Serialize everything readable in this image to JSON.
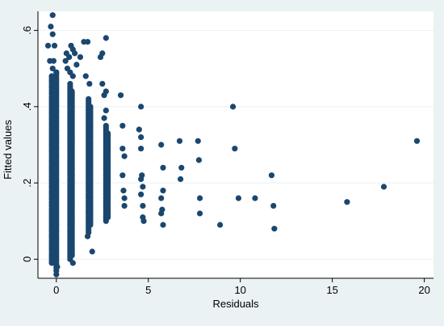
{
  "chart_data": {
    "type": "scatter",
    "title": "",
    "xlabel": "Residuals",
    "ylabel": "Fitted values",
    "xlim": [
      -1,
      20.5
    ],
    "ylim": [
      -0.05,
      0.65
    ],
    "xticks": [
      0,
      5,
      10,
      15,
      20
    ],
    "yticks": [
      0,
      0.2,
      0.4,
      0.6
    ],
    "xtick_labels": [
      "0",
      "5",
      "10",
      "15",
      "20"
    ],
    "ytick_labels": [
      "0",
      ".2",
      ".4",
      ".6"
    ],
    "grid": "horizontal",
    "legend": "none",
    "colors": {
      "outer_background": "#eaf2f3",
      "plot_background": "#ffffff",
      "marker": "#1a476f",
      "grid": "#eaf2f3"
    },
    "bands": [
      {
        "x": -0.25,
        "y_min": -0.01,
        "y_max": 0.48
      },
      {
        "x": 0.0,
        "y_min": -0.03,
        "y_max": 0.49
      },
      {
        "x": 0.75,
        "y_min": 0.0,
        "y_max": 0.46
      },
      {
        "x": 0.85,
        "y_min": 0.01,
        "y_max": 0.44
      },
      {
        "x": 1.75,
        "y_min": 0.07,
        "y_max": 0.42
      },
      {
        "x": 1.85,
        "y_min": 0.09,
        "y_max": 0.4
      },
      {
        "x": 2.7,
        "y_min": 0.1,
        "y_max": 0.35
      },
      {
        "x": 2.8,
        "y_min": 0.11,
        "y_max": 0.33
      }
    ],
    "points": [
      [
        -0.45,
        0.56
      ],
      [
        -0.35,
        0.52
      ],
      [
        -0.2,
        0.5
      ],
      [
        -0.15,
        0.52
      ],
      [
        -0.1,
        0.56
      ],
      [
        -0.2,
        0.59
      ],
      [
        -0.3,
        0.61
      ],
      [
        -0.2,
        0.64
      ],
      [
        0.0,
        0.49
      ],
      [
        0.5,
        0.52
      ],
      [
        0.55,
        0.54
      ],
      [
        0.7,
        0.53
      ],
      [
        0.8,
        0.56
      ],
      [
        0.9,
        0.55
      ],
      [
        1.0,
        0.54
      ],
      [
        0.6,
        0.5
      ],
      [
        0.75,
        0.49
      ],
      [
        0.9,
        0.48
      ],
      [
        1.1,
        0.51
      ],
      [
        1.3,
        0.53
      ],
      [
        1.5,
        0.57
      ],
      [
        1.7,
        0.57
      ],
      [
        1.6,
        0.48
      ],
      [
        1.8,
        0.46
      ],
      [
        1.7,
        0.06
      ],
      [
        1.95,
        0.02
      ],
      [
        0.9,
        -0.01
      ],
      [
        0.0,
        -0.04
      ],
      [
        0.05,
        -0.02
      ],
      [
        2.4,
        0.53
      ],
      [
        2.5,
        0.54
      ],
      [
        2.7,
        0.58
      ],
      [
        2.5,
        0.46
      ],
      [
        2.6,
        0.43
      ],
      [
        2.7,
        0.44
      ],
      [
        2.6,
        0.37
      ],
      [
        2.7,
        0.39
      ],
      [
        3.5,
        0.43
      ],
      [
        3.6,
        0.35
      ],
      [
        3.6,
        0.29
      ],
      [
        3.7,
        0.27
      ],
      [
        3.6,
        0.22
      ],
      [
        3.7,
        0.16
      ],
      [
        3.65,
        0.18
      ],
      [
        3.7,
        0.14
      ],
      [
        4.6,
        0.4
      ],
      [
        4.5,
        0.34
      ],
      [
        4.6,
        0.32
      ],
      [
        4.6,
        0.29
      ],
      [
        4.6,
        0.21
      ],
      [
        4.65,
        0.22
      ],
      [
        4.7,
        0.19
      ],
      [
        4.6,
        0.17
      ],
      [
        4.7,
        0.14
      ],
      [
        4.7,
        0.11
      ],
      [
        4.75,
        0.1
      ],
      [
        5.7,
        0.3
      ],
      [
        5.8,
        0.24
      ],
      [
        5.8,
        0.18
      ],
      [
        5.7,
        0.16
      ],
      [
        5.75,
        0.13
      ],
      [
        5.7,
        0.12
      ],
      [
        5.8,
        0.09
      ],
      [
        6.7,
        0.31
      ],
      [
        6.8,
        0.24
      ],
      [
        6.75,
        0.21
      ],
      [
        7.7,
        0.31
      ],
      [
        7.75,
        0.26
      ],
      [
        7.8,
        0.16
      ],
      [
        7.8,
        0.12
      ],
      [
        8.9,
        0.09
      ],
      [
        9.6,
        0.4
      ],
      [
        9.7,
        0.29
      ],
      [
        9.9,
        0.16
      ],
      [
        10.8,
        0.16
      ],
      [
        11.7,
        0.22
      ],
      [
        11.8,
        0.14
      ],
      [
        11.85,
        0.08
      ],
      [
        15.8,
        0.15
      ],
      [
        17.8,
        0.19
      ],
      [
        19.6,
        0.31
      ]
    ]
  }
}
